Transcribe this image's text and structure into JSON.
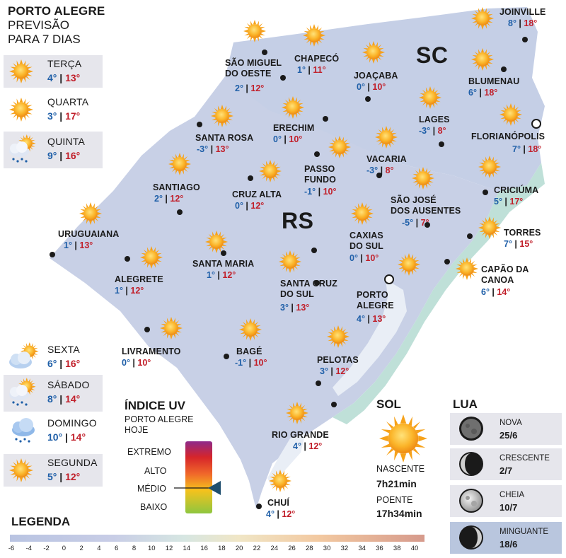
{
  "header": {
    "title": "PORTO ALEGRE",
    "subtitle_line1": "PREVISÃO",
    "subtitle_line2": "PARA 7 DIAS"
  },
  "forecast": [
    {
      "day": "TERÇA",
      "min": "4°",
      "max": "13°",
      "icon": "sun-icon"
    },
    {
      "day": "QUARTA",
      "min": "3°",
      "max": "17°",
      "icon": "sun-icon"
    },
    {
      "day": "QUINTA",
      "min": "9°",
      "max": "16°",
      "icon": "partly-cloudy-rain-icon"
    },
    {
      "day": "SEXTA",
      "min": "6°",
      "max": "16°",
      "icon": "partly-cloudy-icon"
    },
    {
      "day": "SÁBADO",
      "min": "8°",
      "max": "14°",
      "icon": "partly-cloudy-rain-icon"
    },
    {
      "day": "DOMINGO",
      "min": "10°",
      "max": "14°",
      "icon": "rain-cloud-icon"
    },
    {
      "day": "SEGUNDA",
      "min": "5°",
      "max": "12°",
      "icon": "sun-icon"
    }
  ],
  "map": {
    "regions": [
      "SC",
      "RS"
    ],
    "cities": [
      {
        "name": "JOINVILLE",
        "min": "8°",
        "max": "18°"
      },
      {
        "name": "SÃO MIGUEL\nDO OESTE",
        "min": "2°",
        "max": "12°"
      },
      {
        "name": "CHAPECÓ",
        "min": "1°",
        "max": "11°"
      },
      {
        "name": "JOAÇABA",
        "min": "0°",
        "max": "10°"
      },
      {
        "name": "BLUMENAU",
        "min": "6°",
        "max": "18°"
      },
      {
        "name": "LAGES",
        "min": "-3°",
        "max": "8°"
      },
      {
        "name": "FLORIANÓPOLIS",
        "min": "7°",
        "max": "18°"
      },
      {
        "name": "SANTA ROSA",
        "min": "-3°",
        "max": "13°"
      },
      {
        "name": "ERECHIM",
        "min": "0°",
        "max": "10°"
      },
      {
        "name": "VACARIA",
        "min": "-3°",
        "max": "8°"
      },
      {
        "name": "PASSO\nFUNDO",
        "min": "-1°",
        "max": "10°"
      },
      {
        "name": "SANTIAGO",
        "min": "2°",
        "max": "12°"
      },
      {
        "name": "CRUZ ALTA",
        "min": "0°",
        "max": "12°"
      },
      {
        "name": "CRICIÚMA",
        "min": "5°",
        "max": "17°"
      },
      {
        "name": "SÃO JOSÉ\nDOS AUSENTES",
        "min": "-5°",
        "max": "7°"
      },
      {
        "name": "URUGUAIANA",
        "min": "1°",
        "max": "13°"
      },
      {
        "name": "TORRES",
        "min": "7°",
        "max": "15°"
      },
      {
        "name": "CAXIAS\nDO SUL",
        "min": "0°",
        "max": "10°"
      },
      {
        "name": "SANTA MARIA",
        "min": "1°",
        "max": "12°"
      },
      {
        "name": "ALEGRETE",
        "min": "1°",
        "max": "12°"
      },
      {
        "name": "CAPÃO DA\nCANOA",
        "min": "6°",
        "max": "14°"
      },
      {
        "name": "SANTA CRUZ\nDO SUL",
        "min": "3°",
        "max": "13°"
      },
      {
        "name": "PORTO\nALEGRE",
        "min": "4°",
        "max": "13°"
      },
      {
        "name": "LIVRAMENTO",
        "min": "0°",
        "max": "10°"
      },
      {
        "name": "BAGÉ",
        "min": "-1°",
        "max": "10°"
      },
      {
        "name": "PELOTAS",
        "min": "3°",
        "max": "12°"
      },
      {
        "name": "RIO GRANDE",
        "min": "4°",
        "max": "12°"
      },
      {
        "name": "CHUÍ",
        "min": "4°",
        "max": "12°"
      }
    ]
  },
  "uv": {
    "title": "ÍNDICE UV",
    "subtitle_line1": "PORTO ALEGRE",
    "subtitle_line2": "HOJE",
    "levels": [
      "EXTREMO",
      "ALTO",
      "MÉDIO",
      "BAIXO"
    ],
    "current_level": "MÉDIO",
    "marker_color": "#1f4e6e"
  },
  "sun": {
    "title": "SOL",
    "sunrise_label": "NASCENTE",
    "sunrise_time": "7h21min",
    "sunset_label": "POENTE",
    "sunset_time": "17h34min"
  },
  "moon": {
    "title": "LUA",
    "phases": [
      {
        "label": "NOVA",
        "date": "25/6",
        "icon": "new-moon-icon"
      },
      {
        "label": "CRESCENTE",
        "date": "2/7",
        "icon": "first-quarter-moon-icon"
      },
      {
        "label": "CHEIA",
        "date": "10/7",
        "icon": "full-moon-icon"
      },
      {
        "label": "MINGUANTE",
        "date": "18/6",
        "icon": "last-quarter-moon-icon"
      }
    ],
    "highlighted": "MINGUANTE"
  },
  "legend": {
    "title": "LEGENDA",
    "ticks": [
      "-6",
      "-4",
      "-2",
      "0",
      "2",
      "4",
      "6",
      "8",
      "10",
      "12",
      "14",
      "16",
      "18",
      "20",
      "22",
      "24",
      "26",
      "28",
      "30",
      "32",
      "34",
      "36",
      "38",
      "40"
    ]
  },
  "colors": {
    "min_temp": "#1f5fa8",
    "max_temp": "#c11f2a",
    "map_fill": "#c4cde4",
    "panel_bg": "#e6e6ec",
    "highlight_bg": "#b9c6de",
    "sun_core": "#f6a21a"
  }
}
